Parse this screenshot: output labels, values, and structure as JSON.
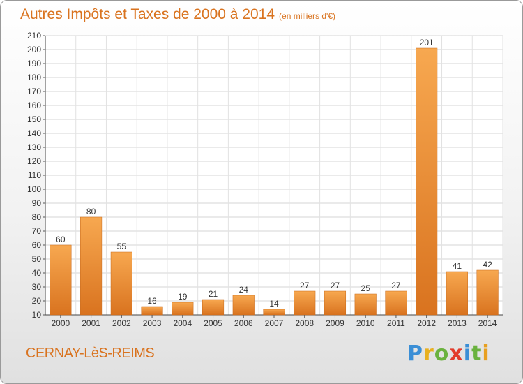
{
  "header": {
    "title": "Autres Impôts et Taxes de 2000 à 2014",
    "subtitle": "(en milliers d'€)"
  },
  "footer": {
    "commune": "CERNAY-LèS-REIMS",
    "brand_letters": [
      {
        "char": "P",
        "color": "#3b8fd6"
      },
      {
        "char": "r",
        "color": "#e8b020"
      },
      {
        "char": "o",
        "color": "#6ab23e"
      },
      {
        "char": "x",
        "color": "#e23c2c"
      },
      {
        "char": "i",
        "color": "#3b8fd6"
      },
      {
        "char": "t",
        "color": "#6ab23e"
      },
      {
        "char": "i",
        "color": "#e8a020"
      }
    ]
  },
  "colors": {
    "accent": "#d9731f",
    "bar_light": "#f7a850",
    "bar_dark": "#d9731f"
  },
  "chart_data": {
    "type": "bar",
    "categories": [
      "2000",
      "2001",
      "2002",
      "2003",
      "2004",
      "2005",
      "2006",
      "2007",
      "2008",
      "2009",
      "2010",
      "2011",
      "2012",
      "2013",
      "2014"
    ],
    "values": [
      60,
      80,
      55,
      16,
      19,
      21,
      24,
      14,
      27,
      27,
      25,
      27,
      201,
      41,
      42
    ],
    "title": "Autres Impôts et Taxes de 2000 à 2014",
    "subtitle": "(en milliers d'€)",
    "ylim": [
      10,
      210
    ],
    "yticks": [
      10,
      20,
      30,
      40,
      50,
      60,
      70,
      80,
      90,
      100,
      110,
      120,
      130,
      140,
      150,
      160,
      170,
      180,
      190,
      200,
      210
    ],
    "grid": true,
    "data_labels": true
  }
}
